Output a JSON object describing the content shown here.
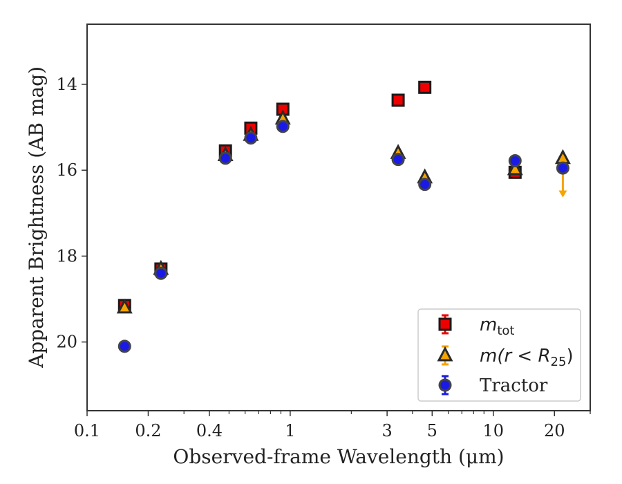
{
  "chart_data": {
    "type": "scatter",
    "xscale": "log",
    "xlim": [
      0.1,
      30
    ],
    "ylim": [
      21.6,
      12.6
    ],
    "y_inverted": true,
    "xlabel": "Observed-frame Wavelength (μm)",
    "ylabel": "Apparent Brightness (AB mag)",
    "xticks": [
      0.1,
      0.2,
      0.4,
      1,
      3,
      5,
      10,
      20
    ],
    "xtick_labels": [
      "0.1",
      "0.2",
      "0.4",
      "1",
      "3",
      "5",
      "10",
      "20"
    ],
    "yticks": [
      14,
      16,
      18,
      20
    ],
    "ytick_labels": [
      "14",
      "16",
      "18",
      "20"
    ],
    "grid": false,
    "legend_position": "bottom-right",
    "series": [
      {
        "name": "m_tot",
        "legend_label": "m",
        "legend_sub": "tot",
        "marker": "square",
        "color": "#ee0000",
        "x": [
          0.153,
          0.231,
          0.48,
          0.64,
          0.92,
          3.4,
          4.6,
          12.8
        ],
        "y": [
          19.15,
          18.3,
          15.55,
          15.02,
          14.58,
          14.37,
          14.07,
          16.05
        ]
      },
      {
        "name": "m(r < R_25)",
        "legend_label": "m(r < R",
        "legend_sub": "25",
        "legend_suffix": ")",
        "marker": "triangle",
        "color": "#f5a400",
        "x": [
          0.153,
          0.231,
          0.48,
          0.64,
          0.92,
          3.4,
          4.6,
          12.8,
          22.0
        ],
        "y": [
          19.2,
          18.3,
          15.65,
          15.18,
          14.8,
          15.6,
          16.17,
          15.98,
          15.72
        ],
        "upper_limits": [
          {
            "x": 22.0,
            "y": 15.72,
            "arrow_to": 16.6
          }
        ]
      },
      {
        "name": "Tractor",
        "legend_label": "Tractor",
        "marker": "circle",
        "color": "#1a1ae6",
        "x": [
          0.153,
          0.231,
          0.48,
          0.64,
          0.92,
          3.4,
          4.6,
          12.8,
          22.0
        ],
        "y": [
          20.1,
          18.4,
          15.72,
          15.25,
          14.98,
          15.75,
          16.33,
          15.78,
          15.95
        ]
      }
    ]
  }
}
